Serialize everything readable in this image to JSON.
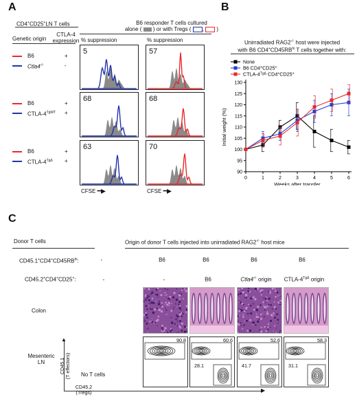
{
  "panelA": {
    "letter": "A",
    "header_left_line1": "CD4",
    "header_left_sup1": "+",
    "header_left_mid": "CD25",
    "header_left_sup2": "+",
    "header_left_tail": "LN T cells",
    "genetic_origin_label": "Genetic origin",
    "ctla4_label_line1": "CTLA-4",
    "ctla4_label_line2": "expression",
    "responder_line1": "B6 responder T cells cultured",
    "responder_line2_a": "alone (",
    "responder_line2_b": ") or with Tregs (",
    "responder_line2_c": ",",
    "responder_line2_d": ")",
    "suppression_label_left": "% suppression",
    "suppression_label_right": "% suppression",
    "cfse_label_left": "CFSE",
    "cfse_label_right": "CFSE",
    "rows": [
      {
        "red_label": "B6",
        "red_expr": "+",
        "blue_label": "Ctla4",
        "blue_sup": "-/-",
        "blue_expr": "-",
        "blue_italic": true,
        "left_value": "5",
        "right_value": "57"
      },
      {
        "red_label": "B6",
        "red_expr": "+",
        "blue_label": "CTLA-4",
        "blue_sup": "TgWT",
        "blue_expr": "+",
        "blue_italic": false,
        "left_value": "68",
        "right_value": "68"
      },
      {
        "red_label": "B6",
        "red_expr": "+",
        "blue_label": "CTLA-4",
        "blue_sup": "TgΔ",
        "blue_expr": "+",
        "blue_italic": false,
        "left_value": "63",
        "right_value": "70"
      }
    ],
    "colors": {
      "red": "#e8282a",
      "blue": "#2233aa",
      "gray": "#8a8a8a"
    }
  },
  "panelB": {
    "letter": "B",
    "title_line1": "Unirradiated RAG2",
    "title_line1_sup": "-/-",
    "title_line1_tail": " host were injected",
    "title_line2": "with B6 CD4",
    "title_line2_sup": "+",
    "title_line2_mid": "CD45RB",
    "title_line2_sup2": "hi",
    "title_line2_tail": " T cells together with:"
  },
  "chart_data": {
    "type": "line",
    "xlabel": "Weeks after transfer",
    "ylabel": "Initial weight (%)",
    "x": [
      0,
      1,
      2,
      3,
      4,
      5,
      6
    ],
    "ylim": [
      90,
      130
    ],
    "yticks": [
      "90",
      "95",
      "100",
      "105",
      "110",
      "115",
      "120",
      "125",
      "130"
    ],
    "xticks": [
      "0",
      "1",
      "2",
      "3",
      "4",
      "5",
      "6"
    ],
    "legend_placement": "top-left",
    "series": [
      {
        "name": "None",
        "color": "#000000",
        "marker": "square",
        "values": [
          100,
          102,
          110,
          115,
          108,
          104,
          101
        ],
        "err": [
          0,
          3,
          3,
          6,
          7,
          5,
          3
        ]
      },
      {
        "name": "B6 CD4+CD25+",
        "color": "#1f3ed8",
        "marker": "square",
        "values": [
          100,
          105,
          107,
          113,
          117,
          120,
          121
        ],
        "err": [
          0,
          3,
          3,
          5,
          5,
          5,
          6
        ]
      },
      {
        "name": "CTLA-4TgΔ CD4+CD25+",
        "color": "#e8282a",
        "marker": "square",
        "values": [
          100,
          104,
          106,
          112,
          119,
          122,
          125
        ],
        "err": [
          0,
          3,
          4,
          6,
          5,
          5,
          4
        ]
      }
    ],
    "legend_labels": {
      "none": "None",
      "b6_main": "B6 CD4",
      "b6_sup1": "+",
      "b6_mid": "CD25",
      "b6_sup2": "+",
      "tg_main": "CTLA-4",
      "tg_sup": "TgΔ",
      "tg_mid": " CD4",
      "tg_sup2": "+",
      "tg_mid2": "CD25",
      "tg_sup3": "+"
    }
  },
  "panelC": {
    "letter": "C",
    "donor_label": "Donor T cells",
    "origin_header": "Origin of donor T cells injected into unirradiated RAG2",
    "origin_header_sup": "-/-",
    "origin_header_tail": " host mice",
    "row1_label_a": "CD45.1",
    "row1_label_sup1": "+",
    "row1_label_b": "CD4",
    "row1_label_sup2": "+",
    "row1_label_c": "CD45RB",
    "row1_label_sup3": "hi",
    "row1_label_tail": ":",
    "row2_label_a": "CD45.2",
    "row2_label_sup1": "+",
    "row2_label_b": "CD4",
    "row2_label_sup2": "+",
    "row2_label_c": "CD25",
    "row2_label_sup3": "+",
    "row2_label_tail": ":",
    "row1_values": [
      "-",
      "B6",
      "B6",
      "B6",
      "B6"
    ],
    "row2_values": [
      "-",
      "-",
      "B6",
      "Ctla4",
      "CTLA-4"
    ],
    "row2_suffix": [
      "",
      "",
      "",
      " origin",
      " origin"
    ],
    "row2_sup": [
      "",
      "",
      "",
      "-/-",
      "TgΔ"
    ],
    "colon_label": "Colon",
    "mln_label_line1": "Mesenteric",
    "mln_label_line2": "LN",
    "no_t_cells": "No T cells",
    "yaxis_line1": "CD45.1",
    "yaxis_line2": "(T effectors)",
    "xaxis_line1": "CD45.2",
    "xaxis_line2": "(Tregs)",
    "gate_values_top": [
      "",
      "90.8",
      "60.6",
      "52.6",
      "58.3"
    ],
    "gate_values_bottom": [
      "",
      "",
      "28.1",
      "41.7",
      "31.1"
    ]
  }
}
